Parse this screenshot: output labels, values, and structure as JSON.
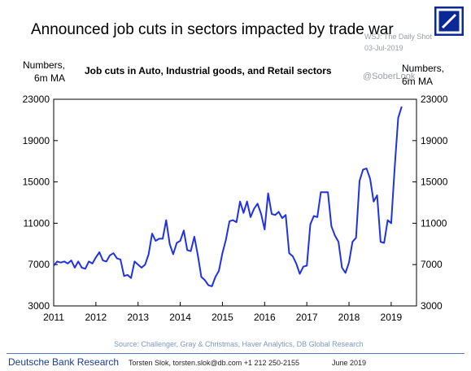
{
  "chart_data": {
    "type": "line",
    "title": "Announced job cuts in sectors impacted by trade war",
    "subtitle": "Job cuts in Auto, Industrial goods, and Retail sectors",
    "ylabel_left": "Numbers, 6m MA",
    "ylabel_right": "Numbers, 6m MA",
    "xlabel": "",
    "ylim": [
      3000,
      23000
    ],
    "xlim": [
      2011.0,
      2019.6
    ],
    "y_ticks": [
      "23000",
      "19000",
      "15000",
      "11000",
      "7000",
      "3000"
    ],
    "y_tick_values": [
      23000,
      19000,
      15000,
      11000,
      7000,
      3000
    ],
    "x_ticks": [
      "2011",
      "2012",
      "2013",
      "2014",
      "2015",
      "2016",
      "2017",
      "2018",
      "2019"
    ],
    "x_tick_values": [
      2011,
      2012,
      2013,
      2014,
      2015,
      2016,
      2017,
      2018,
      2019
    ],
    "legend": "none",
    "grid": false,
    "color": "#1f32e6",
    "series": [
      {
        "x": [
          2011.0,
          2011.083,
          2011.167,
          2011.25,
          2011.333,
          2011.417,
          2011.5,
          2011.583,
          2011.667,
          2011.75,
          2011.833,
          2011.917,
          2012.0,
          2012.083,
          2012.167,
          2012.25,
          2012.333,
          2012.417,
          2012.5,
          2012.583,
          2012.667,
          2012.75,
          2012.833,
          2012.917,
          2013.0,
          2013.083,
          2013.167,
          2013.25,
          2013.333,
          2013.417,
          2013.5,
          2013.583,
          2013.667,
          2013.75,
          2013.833,
          2013.917,
          2014.0,
          2014.083,
          2014.167,
          2014.25,
          2014.333,
          2014.417,
          2014.5,
          2014.583,
          2014.667,
          2014.75,
          2014.833,
          2014.917,
          2015.0,
          2015.083,
          2015.167,
          2015.25,
          2015.333,
          2015.417,
          2015.5,
          2015.583,
          2015.667,
          2015.75,
          2015.833,
          2015.917,
          2016.0,
          2016.083,
          2016.167,
          2016.25,
          2016.333,
          2016.417,
          2016.5,
          2016.583,
          2016.667,
          2016.75,
          2016.833,
          2016.917,
          2017.0,
          2017.083,
          2017.167,
          2017.25,
          2017.333,
          2017.417,
          2017.5,
          2017.583,
          2017.667,
          2017.75,
          2017.833,
          2017.917,
          2018.0,
          2018.083,
          2018.167,
          2018.25,
          2018.333,
          2018.417,
          2018.5,
          2018.583,
          2018.667,
          2018.75,
          2018.833,
          2018.917,
          2019.0,
          2019.083,
          2019.167,
          2019.25
        ],
        "y": [
          6900,
          7300,
          7200,
          7300,
          7100,
          7400,
          6700,
          7300,
          6700,
          6600,
          7300,
          7100,
          7700,
          8200,
          7400,
          7300,
          7900,
          8100,
          7600,
          7500,
          5900,
          6000,
          5700,
          7300,
          7000,
          6700,
          7000,
          8000,
          10000,
          9300,
          9500,
          9500,
          11300,
          9000,
          8000,
          9100,
          9300,
          10300,
          8400,
          8300,
          9700,
          7900,
          5800,
          5500,
          5000,
          4900,
          5800,
          6400,
          8100,
          9400,
          11200,
          11300,
          11100,
          13100,
          12000,
          13100,
          11600,
          12400,
          12900,
          11900,
          10400,
          13900,
          11900,
          11800,
          12100,
          11500,
          11800,
          8100,
          7800,
          7100,
          6100,
          6800,
          6900,
          10900,
          11700,
          11600,
          14000,
          14000,
          14000,
          10700,
          9800,
          9200,
          6700,
          6200,
          7200,
          9200,
          9600,
          15100,
          16200,
          16300,
          15300,
          13100,
          13700,
          9200,
          9100,
          11300,
          11000,
          16400,
          21200,
          22300
        ]
      }
    ],
    "text": {
      "unit_left_line1": "Numbers,",
      "unit_left_line2": "6m MA",
      "unit_right_line1": "Numbers,",
      "unit_right_line2": "6m MA"
    }
  },
  "overlay": {
    "wsj_line1": "WSJ: The Daily Shot",
    "wsj_line2": "03-Jul-2019",
    "handle": "@SoberLook"
  },
  "footer": {
    "source": "Source: Challenger, Gray & Christmas, Haver Analytics, DB Global Research",
    "brand": "Deutsche Bank Research",
    "contact": "Torsten Slok, torsten.slok@db.com  +1 212 250-2155",
    "date": "June 2019"
  },
  "logo": {
    "name": "deutsche-bank-logo",
    "color": "#0a2896"
  }
}
